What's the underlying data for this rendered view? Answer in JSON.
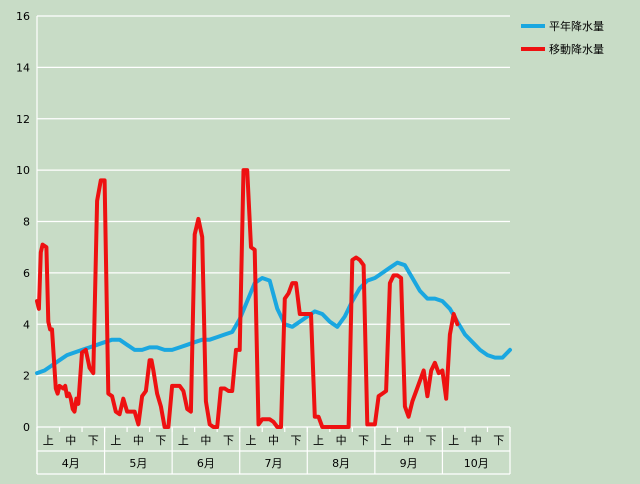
{
  "chart_data": {
    "type": "line",
    "title": "",
    "xlabel": "",
    "ylabel": "",
    "ylim": [
      0,
      16
    ],
    "y_ticks": [
      0,
      2,
      4,
      6,
      8,
      10,
      12,
      14,
      16
    ],
    "grid": "horizontal",
    "legend_position": "top-right",
    "x_sublabels": [
      "上",
      "中",
      "下"
    ],
    "months": [
      "4月",
      "5月",
      "6月",
      "7月",
      "8月",
      "9月",
      "10月"
    ],
    "series": [
      {
        "name": "平年降水量",
        "color": "#1aa7e0",
        "values": [
          [
            0,
            2.1
          ],
          [
            2,
            2.2
          ],
          [
            4,
            2.4
          ],
          [
            6,
            2.6
          ],
          [
            8,
            2.8
          ],
          [
            10,
            2.9
          ],
          [
            12,
            3.0
          ],
          [
            14,
            3.1
          ],
          [
            16,
            3.2
          ],
          [
            18,
            3.3
          ],
          [
            20,
            3.4
          ],
          [
            22,
            3.4
          ],
          [
            24,
            3.2
          ],
          [
            26,
            3.0
          ],
          [
            28,
            3.0
          ],
          [
            30,
            3.1
          ],
          [
            32,
            3.1
          ],
          [
            34,
            3.0
          ],
          [
            36,
            3.0
          ],
          [
            38,
            3.1
          ],
          [
            40,
            3.2
          ],
          [
            42,
            3.3
          ],
          [
            44,
            3.4
          ],
          [
            46,
            3.4
          ],
          [
            48,
            3.5
          ],
          [
            50,
            3.6
          ],
          [
            52,
            3.7
          ],
          [
            54,
            4.2
          ],
          [
            56,
            4.9
          ],
          [
            58,
            5.6
          ],
          [
            60,
            5.8
          ],
          [
            62,
            5.7
          ],
          [
            64,
            4.6
          ],
          [
            66,
            4.0
          ],
          [
            68,
            3.9
          ],
          [
            70,
            4.1
          ],
          [
            72,
            4.3
          ],
          [
            74,
            4.5
          ],
          [
            76,
            4.4
          ],
          [
            78,
            4.1
          ],
          [
            80,
            3.9
          ],
          [
            82,
            4.3
          ],
          [
            84,
            4.9
          ],
          [
            86,
            5.4
          ],
          [
            88,
            5.7
          ],
          [
            90,
            5.8
          ],
          [
            92,
            6.0
          ],
          [
            94,
            6.2
          ],
          [
            96,
            6.4
          ],
          [
            98,
            6.3
          ],
          [
            100,
            5.8
          ],
          [
            102,
            5.3
          ],
          [
            104,
            5.0
          ],
          [
            106,
            5.0
          ],
          [
            108,
            4.9
          ],
          [
            110,
            4.6
          ],
          [
            112,
            4.1
          ],
          [
            114,
            3.6
          ],
          [
            116,
            3.3
          ],
          [
            118,
            3.0
          ],
          [
            120,
            2.8
          ],
          [
            122,
            2.7
          ],
          [
            124,
            2.7
          ],
          [
            126,
            3.0
          ]
        ]
      },
      {
        "name": "移動降水量",
        "color": "#ee1111",
        "values": [
          [
            0,
            4.9
          ],
          [
            0.5,
            4.6
          ],
          [
            1,
            6.8
          ],
          [
            1.5,
            7.1
          ],
          [
            2.5,
            7.0
          ],
          [
            3,
            4.1
          ],
          [
            3.5,
            3.8
          ],
          [
            4,
            3.8
          ],
          [
            5,
            1.5
          ],
          [
            5.5,
            1.3
          ],
          [
            6,
            1.6
          ],
          [
            7,
            1.5
          ],
          [
            7.5,
            1.6
          ],
          [
            8,
            1.2
          ],
          [
            8.5,
            1.3
          ],
          [
            9,
            1.1
          ],
          [
            9.5,
            0.7
          ],
          [
            10,
            0.6
          ],
          [
            10.5,
            1.1
          ],
          [
            11,
            0.9
          ],
          [
            12,
            2.9
          ],
          [
            13,
            3.0
          ],
          [
            14,
            2.3
          ],
          [
            15,
            2.1
          ],
          [
            16,
            8.8
          ],
          [
            17,
            9.6
          ],
          [
            18,
            9.6
          ],
          [
            19,
            1.3
          ],
          [
            20,
            1.2
          ],
          [
            21,
            0.6
          ],
          [
            22,
            0.5
          ],
          [
            23,
            1.1
          ],
          [
            24,
            0.6
          ],
          [
            25,
            0.6
          ],
          [
            26,
            0.6
          ],
          [
            27,
            0.1
          ],
          [
            28,
            1.2
          ],
          [
            29,
            1.4
          ],
          [
            30,
            2.6
          ],
          [
            30.5,
            2.6
          ],
          [
            31,
            2.2
          ],
          [
            32,
            1.3
          ],
          [
            33,
            0.8
          ],
          [
            34,
            0
          ],
          [
            35,
            0
          ],
          [
            36,
            1.6
          ],
          [
            37,
            1.6
          ],
          [
            38,
            1.6
          ],
          [
            39,
            1.4
          ],
          [
            40,
            0.7
          ],
          [
            41,
            0.6
          ],
          [
            42,
            7.5
          ],
          [
            43,
            8.1
          ],
          [
            44,
            7.4
          ],
          [
            45,
            1.0
          ],
          [
            46,
            0.1
          ],
          [
            47,
            0
          ],
          [
            48,
            0
          ],
          [
            49,
            1.5
          ],
          [
            50,
            1.5
          ],
          [
            51,
            1.4
          ],
          [
            52,
            1.4
          ],
          [
            53,
            3.0
          ],
          [
            54,
            3.0
          ],
          [
            55,
            10.0
          ],
          [
            56,
            10.0
          ],
          [
            57,
            7.0
          ],
          [
            58,
            6.9
          ],
          [
            59,
            0.1
          ],
          [
            60,
            0.3
          ],
          [
            61,
            0.3
          ],
          [
            62,
            0.3
          ],
          [
            63,
            0.2
          ],
          [
            64,
            0
          ],
          [
            65,
            0
          ],
          [
            66,
            5.0
          ],
          [
            67,
            5.2
          ],
          [
            68,
            5.6
          ],
          [
            69,
            5.6
          ],
          [
            70,
            4.4
          ],
          [
            71,
            4.4
          ],
          [
            72,
            4.4
          ],
          [
            73,
            4.4
          ],
          [
            74,
            0.4
          ],
          [
            75,
            0.4
          ],
          [
            76,
            0
          ],
          [
            77,
            0
          ],
          [
            78,
            0
          ],
          [
            79,
            0
          ],
          [
            80,
            0
          ],
          [
            81,
            0
          ],
          [
            82,
            0
          ],
          [
            83,
            0
          ],
          [
            84,
            6.5
          ],
          [
            85,
            6.6
          ],
          [
            86,
            6.5
          ],
          [
            87,
            6.3
          ],
          [
            88,
            0.1
          ],
          [
            89,
            0.1
          ],
          [
            90,
            0.1
          ],
          [
            91,
            1.2
          ],
          [
            92,
            1.3
          ],
          [
            93,
            1.4
          ],
          [
            94,
            5.6
          ],
          [
            95,
            5.9
          ],
          [
            96,
            5.9
          ],
          [
            97,
            5.8
          ],
          [
            98,
            0.8
          ],
          [
            99,
            0.4
          ],
          [
            100,
            1.0
          ],
          [
            101,
            1.4
          ],
          [
            102,
            1.8
          ],
          [
            103,
            2.2
          ],
          [
            104,
            1.2
          ],
          [
            105,
            2.2
          ],
          [
            106,
            2.5
          ],
          [
            107,
            2.1
          ],
          [
            108,
            2.2
          ],
          [
            109,
            1.1
          ],
          [
            110,
            3.6
          ],
          [
            111,
            4.4
          ],
          [
            112,
            4.0
          ]
        ]
      }
    ]
  }
}
